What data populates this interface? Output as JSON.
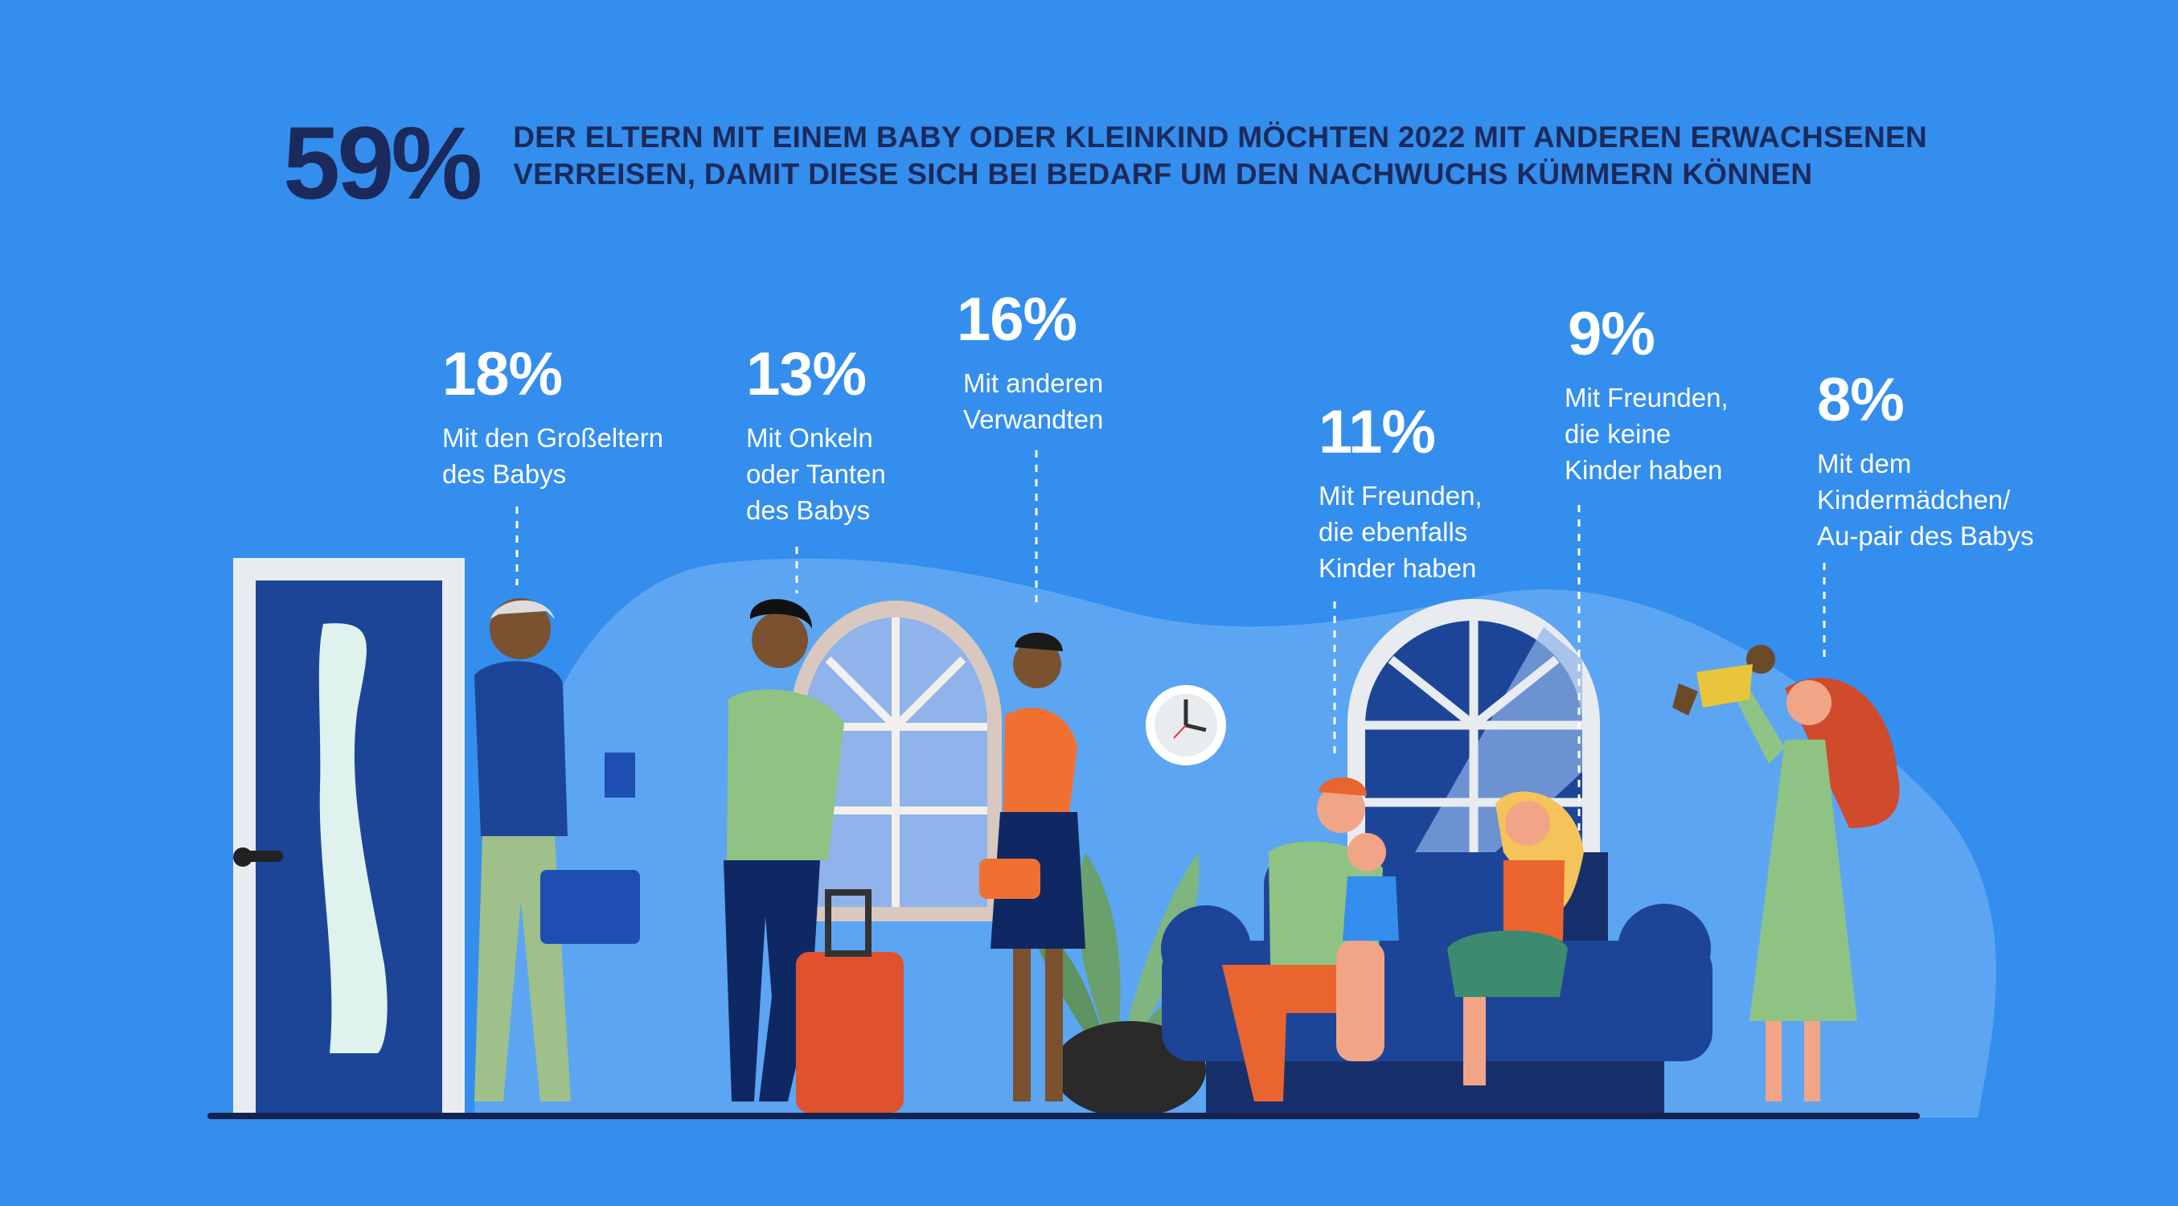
{
  "headline": {
    "percent": "59%",
    "line1": "DER ELTERN MIT EINEM BABY ODER KLEINKIND MÖCHTEN 2022 MIT ANDEREN ERWACHSENEN",
    "line2": "VERREISEN, DAMIT DIESE SICH BEI BEDARF UM DEN NACHWUCHS KÜMMERN KÖNNEN"
  },
  "stats": [
    {
      "percent": "18%",
      "lines": [
        "Mit den Großeltern",
        "des Babys"
      ]
    },
    {
      "percent": "13%",
      "lines": [
        "Mit Onkeln",
        "oder Tanten",
        "des Babys"
      ]
    },
    {
      "percent": "16%",
      "lines": [
        "Mit anderen",
        "Verwandten"
      ]
    },
    {
      "percent": "11%",
      "lines": [
        "Mit Freunden,",
        "die ebenfalls",
        "Kinder haben"
      ]
    },
    {
      "percent": "9%",
      "lines": [
        "Mit Freunden,",
        "die keine",
        "Kinder haben"
      ]
    },
    {
      "percent": "8%",
      "lines": [
        "Mit dem",
        "Kindermädchen/",
        "Au-pair des Babys"
      ]
    }
  ],
  "colors": {
    "background": "#348eed",
    "headline_text": "#1b2a5c",
    "stat_text": "#ffffff",
    "blob": "#5ca5f3",
    "door": "#1d4597",
    "sofa": "#1d4597"
  },
  "icons": [
    "clock-icon",
    "door-illustration",
    "window-illustration",
    "sofa-illustration",
    "plant-illustration",
    "suitcase-illustration"
  ]
}
